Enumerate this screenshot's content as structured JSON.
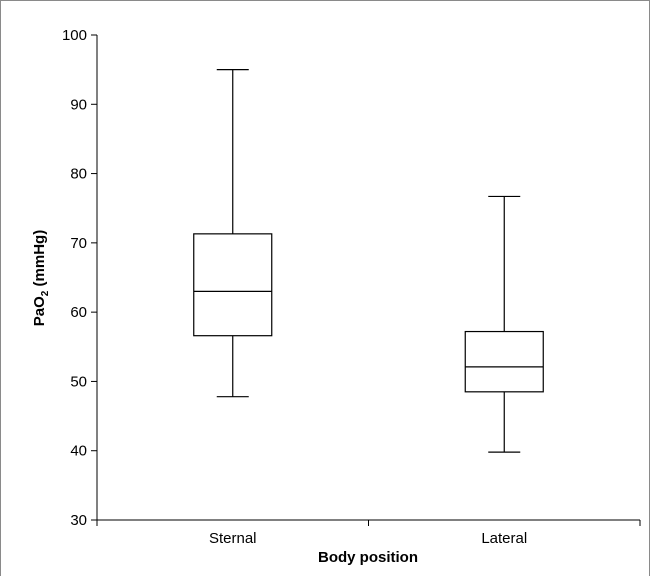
{
  "chart_data": {
    "type": "box",
    "categories": [
      "Sternal",
      "Lateral"
    ],
    "boxes": [
      {
        "name": "Sternal",
        "min": 47.8,
        "q1": 56.6,
        "median": 63.0,
        "q3": 71.3,
        "max": 95.0
      },
      {
        "name": "Lateral",
        "min": 39.8,
        "q1": 48.5,
        "median": 52.1,
        "q3": 57.2,
        "max": 76.7
      }
    ],
    "xlabel": "Body position",
    "ylabel": {
      "prefix": "PaO",
      "subscript": "2",
      "suffix": " (mmHg)"
    },
    "ylim": [
      30,
      100
    ],
    "yticks": [
      30,
      40,
      50,
      60,
      70,
      80,
      90,
      100
    ],
    "grid": false
  }
}
